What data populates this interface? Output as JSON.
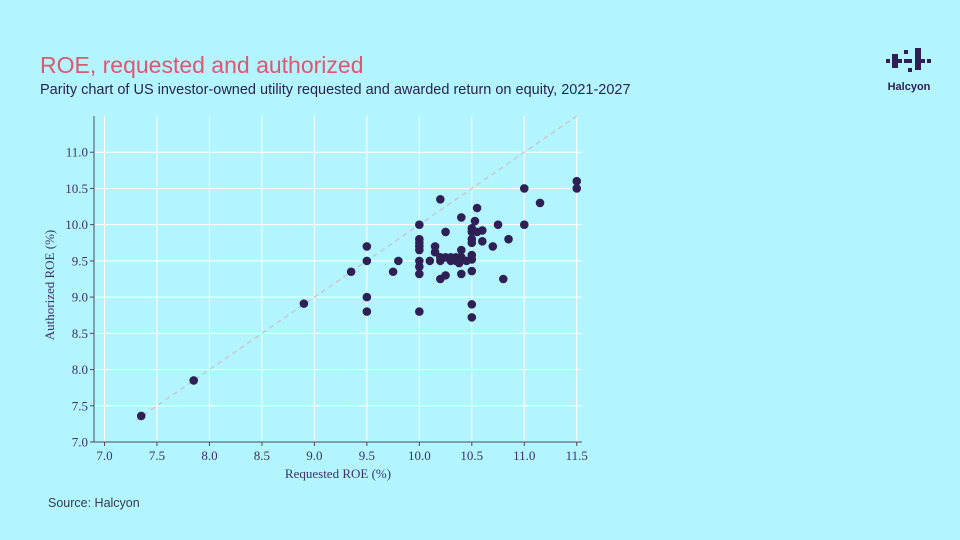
{
  "header": {
    "title": "ROE, requested and authorized",
    "subtitle": "Parity chart of US investor-owned utility requested and awarded return on equity, 2021-2027"
  },
  "brand": {
    "name": "Halcyon",
    "color": "#2e1f55"
  },
  "footer": {
    "source": "Source: Halcyon"
  },
  "colors": {
    "background": "#b3f5ff",
    "title": "#e0566e",
    "point": "#2e1f55",
    "grid": "#ffffff",
    "parity_line": "#c7c7cf"
  },
  "chart_data": {
    "type": "scatter",
    "xlabel": "Requested ROE (%)",
    "ylabel": "Authorized ROE (%)",
    "xlim": [
      6.9,
      11.55
    ],
    "ylim": [
      7.0,
      11.5
    ],
    "xticks": [
      "7.0",
      "7.5",
      "8.0",
      "8.5",
      "9.0",
      "9.5",
      "10.0",
      "10.5",
      "11.0",
      "11.5"
    ],
    "yticks": [
      "7.0",
      "7.5",
      "8.0",
      "8.5",
      "9.0",
      "9.5",
      "10.0",
      "10.5",
      "11.0"
    ],
    "grid": true,
    "parity_line": true,
    "points": [
      [
        7.35,
        7.36
      ],
      [
        7.85,
        7.85
      ],
      [
        8.9,
        8.91
      ],
      [
        9.35,
        9.35
      ],
      [
        9.5,
        9.7
      ],
      [
        9.5,
        9.5
      ],
      [
        9.5,
        9.0
      ],
      [
        9.5,
        8.8
      ],
      [
        9.75,
        9.35
      ],
      [
        9.8,
        9.5
      ],
      [
        10.0,
        10.0
      ],
      [
        10.0,
        9.8
      ],
      [
        10.0,
        9.75
      ],
      [
        10.0,
        9.7
      ],
      [
        10.0,
        9.65
      ],
      [
        10.0,
        9.5
      ],
      [
        10.0,
        9.42
      ],
      [
        10.0,
        9.32
      ],
      [
        10.0,
        8.8
      ],
      [
        10.1,
        9.5
      ],
      [
        10.15,
        9.7
      ],
      [
        10.15,
        9.62
      ],
      [
        10.2,
        10.35
      ],
      [
        10.2,
        9.55
      ],
      [
        10.2,
        9.5
      ],
      [
        10.2,
        9.25
      ],
      [
        10.25,
        9.9
      ],
      [
        10.25,
        9.55
      ],
      [
        10.25,
        9.3
      ],
      [
        10.3,
        9.55
      ],
      [
        10.3,
        9.5
      ],
      [
        10.35,
        9.5
      ],
      [
        10.35,
        9.55
      ],
      [
        10.38,
        9.47
      ],
      [
        10.4,
        10.1
      ],
      [
        10.4,
        9.65
      ],
      [
        10.4,
        9.55
      ],
      [
        10.4,
        9.32
      ],
      [
        10.45,
        9.5
      ],
      [
        10.5,
        9.95
      ],
      [
        10.5,
        9.9
      ],
      [
        10.5,
        9.8
      ],
      [
        10.5,
        9.75
      ],
      [
        10.5,
        9.58
      ],
      [
        10.5,
        9.52
      ],
      [
        10.5,
        9.36
      ],
      [
        10.5,
        8.9
      ],
      [
        10.5,
        8.72
      ],
      [
        10.53,
        10.05
      ],
      [
        10.55,
        10.23
      ],
      [
        10.55,
        9.9
      ],
      [
        10.6,
        9.92
      ],
      [
        10.6,
        9.77
      ],
      [
        10.7,
        9.7
      ],
      [
        10.75,
        10.0
      ],
      [
        10.8,
        9.25
      ],
      [
        10.85,
        9.8
      ],
      [
        11.0,
        10.5
      ],
      [
        11.0,
        10.0
      ],
      [
        11.15,
        10.3
      ],
      [
        11.5,
        10.6
      ],
      [
        11.5,
        10.5
      ]
    ]
  }
}
